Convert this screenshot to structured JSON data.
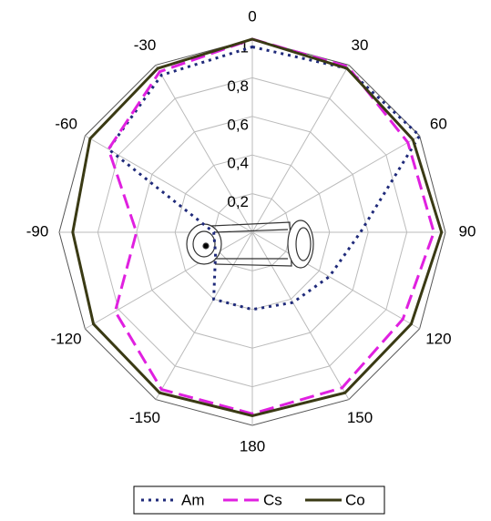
{
  "chart_data": {
    "type": "radar",
    "categories": [
      "0",
      "30",
      "60",
      "90",
      "120",
      "150",
      "180",
      "-150",
      "-120",
      "-90",
      "-60",
      "-30"
    ],
    "ylim": [
      0,
      1
    ],
    "yticks": [
      {
        "value": 0.2,
        "label": "0,2"
      },
      {
        "value": 0.4,
        "label": "0,4"
      },
      {
        "value": 0.6,
        "label": "0,6"
      },
      {
        "value": 0.8,
        "label": "0,8"
      },
      1
    ],
    "grid": true,
    "legend": "bottom",
    "series": [
      {
        "name": "Am",
        "color": "#1f2a7a",
        "linestyle": "dotted",
        "values": [
          0.96,
          0.98,
          1.0,
          0.56,
          0.46,
          0.42,
          0.4,
          0.4,
          0.22,
          0.2,
          0.86,
          0.94
        ]
      },
      {
        "name": "Cs",
        "color": "#e020e0",
        "linestyle": "dashed",
        "values": [
          1.0,
          0.99,
          0.93,
          0.94,
          0.9,
          0.93,
          0.94,
          0.94,
          0.82,
          0.6,
          0.86,
          0.96
        ]
      },
      {
        "name": "Co",
        "color": "#3a3a14",
        "linestyle": "solid",
        "values": [
          1.0,
          0.98,
          0.96,
          0.98,
          0.95,
          0.96,
          0.95,
          0.96,
          0.95,
          0.93,
          0.97,
          0.98
        ]
      }
    ]
  }
}
